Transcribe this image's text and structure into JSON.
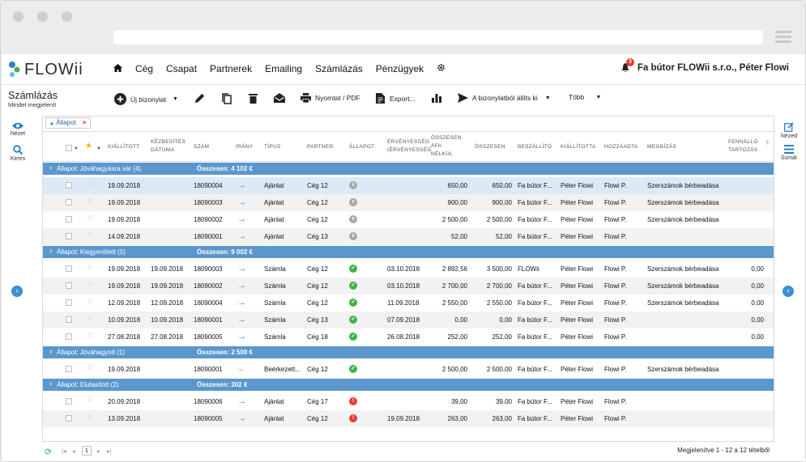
{
  "nav": {
    "brand": "FLOWii",
    "items": [
      "Cég",
      "Csapat",
      "Partnerek",
      "Emailing",
      "Számlázás",
      "Pénzügyek"
    ],
    "notification_count": "3",
    "user": "Fa bútor FLOWii s.r.o., Péter Flowi"
  },
  "page": {
    "title": "Számlázás",
    "subtitle": "Mindet megjelenít"
  },
  "toolbar": {
    "new_doc": "Új bizonylat",
    "print": "Nyomtat / PDF",
    "export": "Export...",
    "create_from": "A bizonylatból állíts ki",
    "more": "Több"
  },
  "sidebar_left": {
    "view": "Nézet",
    "search": "Keres"
  },
  "sidebar_right": {
    "view": "Nézed",
    "summary": "Sumár"
  },
  "filter": {
    "chip": "Állapot"
  },
  "columns": {
    "issued": "KIÁLLÍTOTT",
    "delivery1": "KÉZBESÍTÉS",
    "delivery2": "DÁTUMA",
    "number": "SZÁM",
    "direction": "IRÁNY",
    "type": "TÍPUS",
    "partner": "PARTNER",
    "status": "ÁLLAPOT",
    "validity1": "ÉRVÉNYESSÉG",
    "validity2": "(ÉRVÉNYESSÉG",
    "netvat1": "ÖSSZESEN",
    "netvat2": "ÁFA",
    "netvat3": "NÉLKÜL",
    "total": "ÖSSZESEN",
    "supplier": "BESZÁLLÍTÓ",
    "issuer": "KIÁLLÍTOTTA",
    "added_by": "HOZZÁADTA",
    "order": "MEGBÍZÁS",
    "remaining1": "FENNÁLLÓ",
    "remaining2": "TARTOZÁS"
  },
  "groups": [
    {
      "label": "Állapot: Jóváhagyásra vár (4)",
      "total": "Összesen: 4 102 €",
      "rows": [
        {
          "issued": "19.09.2018",
          "delivery": "",
          "number": "18090004",
          "dir": "out",
          "type": "Ajánlat",
          "partner": "Cég 12",
          "status": "pause",
          "validity": "",
          "net": "650,00",
          "total": "650,00",
          "supplier": "Fa bútor F...",
          "issuer": "Péter Flowi",
          "added": "Flowi P.",
          "order": "Szerszámok bérbeadása",
          "remaining": ""
        },
        {
          "issued": "19.09.2018",
          "delivery": "",
          "number": "18090003",
          "dir": "out",
          "type": "Ajánlat",
          "partner": "Cég 12",
          "status": "pause",
          "validity": "",
          "net": "900,00",
          "total": "900,00",
          "supplier": "Fa bútor F...",
          "issuer": "Péter Flowi",
          "added": "Flowi P.",
          "order": "Szerszámok bérbeadása",
          "remaining": ""
        },
        {
          "issued": "19.09.2018",
          "delivery": "",
          "number": "18090002",
          "dir": "out",
          "type": "Ajánlat",
          "partner": "Cég 12",
          "status": "pause",
          "validity": "",
          "net": "2 500,00",
          "total": "2 500,00",
          "supplier": "Fa bútor F...",
          "issuer": "Péter Flowi",
          "added": "Flowi P.",
          "order": "Szerszámok bérbeadása",
          "remaining": ""
        },
        {
          "issued": "14.09.2018",
          "delivery": "",
          "number": "18090001",
          "dir": "out",
          "type": "Ajánlat",
          "partner": "Cég 13",
          "status": "pause",
          "validity": "",
          "net": "52,00",
          "total": "52,00",
          "supplier": "Fa bútor F...",
          "issuer": "Péter Flowi",
          "added": "Flowi P.",
          "order": "",
          "remaining": ""
        }
      ]
    },
    {
      "label": "Állapot: Kiegyenlített (5)",
      "total": "Összesen: 9 002 €",
      "rows": [
        {
          "issued": "19.09.2018",
          "delivery": "19.09.2018",
          "number": "18090003",
          "dir": "out",
          "type": "Számla",
          "partner": "Cég 12",
          "status": "ok",
          "validity": "03.10.2018",
          "net": "2 892,56",
          "total": "3 500,00",
          "supplier": "FLOWii",
          "issuer": "Péter Flowi",
          "added": "Flowi P.",
          "order": "Szerszámok bérbeadása",
          "remaining": "0,00"
        },
        {
          "issued": "19.09.2018",
          "delivery": "19.09.2018",
          "number": "18090002",
          "dir": "out",
          "type": "Számla",
          "partner": "Cég 12",
          "status": "ok",
          "validity": "03.10.2018",
          "net": "2 700,00",
          "total": "2 700,00",
          "supplier": "Fa bútor F...",
          "issuer": "Péter Flowi",
          "added": "Flowi P.",
          "order": "Szerszámok bérbeadása",
          "remaining": "0,00"
        },
        {
          "issued": "12.09.2018",
          "delivery": "12.09.2018",
          "number": "18090004",
          "dir": "out",
          "type": "Számla",
          "partner": "Cég 12",
          "status": "ok",
          "validity": "11.09.2018",
          "net": "2 550,00",
          "total": "2 550,00",
          "supplier": "Fa bútor F...",
          "issuer": "Péter Flowi",
          "added": "Flowi P.",
          "order": "Szerszámok bérbeadása",
          "remaining": "0,00"
        },
        {
          "issued": "10.09.2018",
          "delivery": "10.09.2018",
          "number": "18090001",
          "dir": "out",
          "type": "Számla",
          "partner": "Cég 13",
          "status": "ok",
          "validity": "07.09.2018",
          "net": "0,00",
          "total": "0,00",
          "supplier": "Fa bútor F...",
          "issuer": "Péter Flowi",
          "added": "Flowi P.",
          "order": "",
          "remaining": "0,00"
        },
        {
          "issued": "27.08.2018",
          "delivery": "27.08.2018",
          "number": "18090005",
          "dir": "out",
          "type": "Számla",
          "partner": "Cég 18",
          "status": "ok",
          "validity": "26.08.2018",
          "net": "252,00",
          "total": "252,00",
          "supplier": "Fa bútor F...",
          "issuer": "Péter Flowi",
          "added": "Flowi P.",
          "order": "",
          "remaining": "0,00"
        }
      ]
    },
    {
      "label": "Állapot: Jóváhagyott (1)",
      "total": "Összesen: 2 500 €",
      "rows": [
        {
          "issued": "19.09.2018",
          "delivery": "",
          "number": "18090001",
          "dir": "in",
          "type": "Beérkezett...",
          "partner": "Cég 12",
          "status": "ok",
          "validity": "",
          "net": "2 500,00",
          "total": "2 500,00",
          "supplier": "Fa bútor F...",
          "issuer": "Péter Flowi",
          "added": "Flowi P.",
          "order": "Szerszámok bérbeadása",
          "remaining": ""
        }
      ]
    },
    {
      "label": "Állapot: Elutasított (2)",
      "total": "Összesen: 302 €",
      "rows": [
        {
          "issued": "20.09.2018",
          "delivery": "",
          "number": "18090006",
          "dir": "out",
          "type": "Ajánlat",
          "partner": "Cég 17",
          "status": "err",
          "validity": "",
          "net": "39,00",
          "total": "39,00",
          "supplier": "Fa bútor F...",
          "issuer": "Péter Flowi",
          "added": "Flowi P.",
          "order": "",
          "remaining": ""
        },
        {
          "issued": "13.09.2018",
          "delivery": "",
          "number": "18090005",
          "dir": "out",
          "type": "Ajánlat",
          "partner": "Cég 12",
          "status": "err",
          "validity": "19.09.2018",
          "net": "263,00",
          "total": "263,00",
          "supplier": "Fa bútor F...",
          "issuer": "Péter Flowi",
          "added": "Flowi P.",
          "order": "",
          "remaining": ""
        }
      ]
    }
  ],
  "footer": {
    "page": "1",
    "summary": "Megjelenítve 1 - 12 a 12 tételből"
  },
  "colors": {
    "accent": "#3d8fd1",
    "group": "#5b97cc",
    "ok": "#3cb44b",
    "err": "#e53935",
    "pause": "#a8a8a8",
    "in_arrow": "#f0a020"
  }
}
